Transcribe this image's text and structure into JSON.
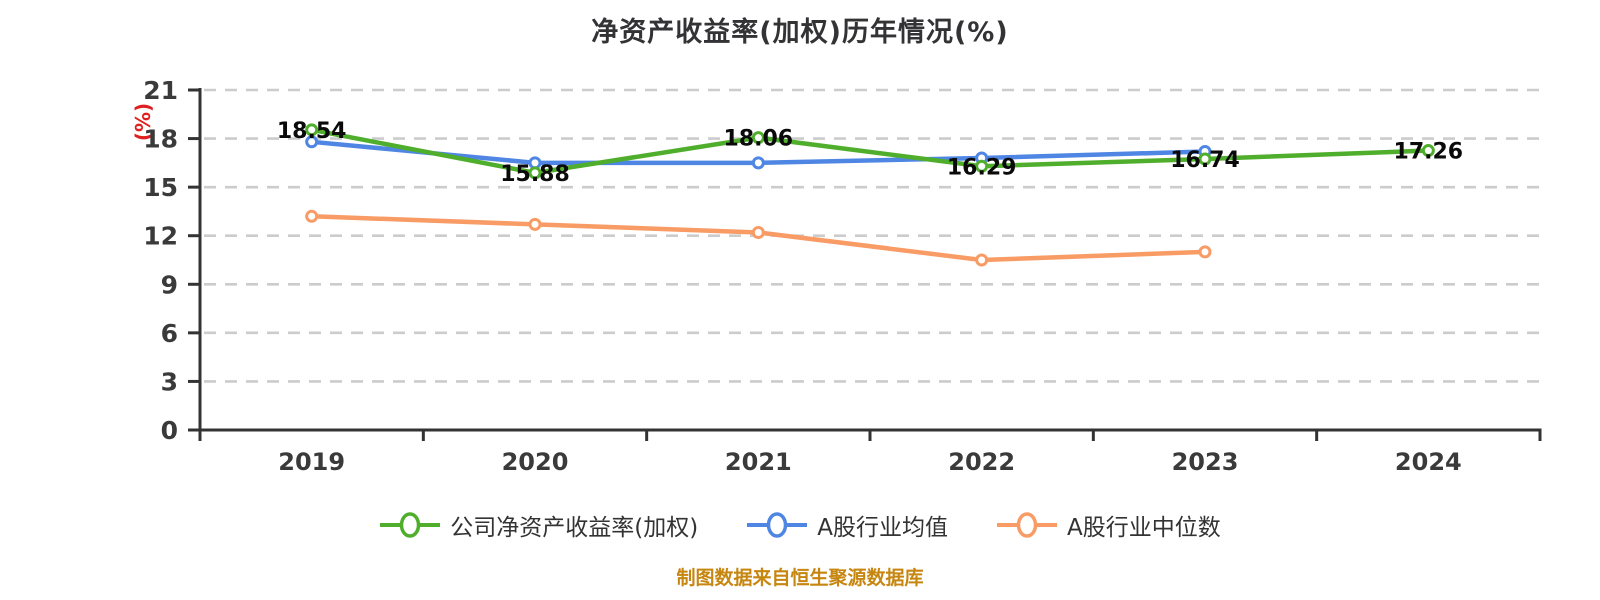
{
  "title": "净资产收益率(加权)历年情况(%)",
  "y_axis_name": "(%)",
  "footer": "制图数据来自恒生聚源数据库",
  "colors": {
    "company_series": "#4fae2c",
    "industry_mean_series": "#4f86e3",
    "industry_median_series": "#f89b64",
    "grid": "#cccccc",
    "axis": "#333333",
    "tick_label": "#3a3a3a",
    "data_label": "#0a0a0a",
    "y_axis_name": "#e02020",
    "footer_text": "#c6860f",
    "marker_fill": "#ffffff"
  },
  "chart_data": {
    "type": "line",
    "title": "净资产收益率(加权)历年情况(%)",
    "xlabel": "",
    "ylabel": "(%)",
    "categories": [
      "2019",
      "2020",
      "2021",
      "2022",
      "2023",
      "2024"
    ],
    "series": [
      {
        "key": "company-roe",
        "name": "公司净资产收益率(加权)",
        "color": "#4fae2c",
        "values": [
          18.54,
          15.88,
          18.06,
          16.29,
          16.74,
          17.26
        ],
        "labels": [
          "18.54",
          "15.88",
          "18.06",
          "16.29",
          "16.74",
          "17.26"
        ],
        "show_labels": true
      },
      {
        "key": "industry-mean",
        "name": "A股行业均值",
        "color": "#4f86e3",
        "values": [
          17.8,
          16.5,
          16.5,
          16.8,
          17.2,
          null
        ],
        "show_labels": false
      },
      {
        "key": "industry-median",
        "name": "A股行业中位数",
        "color": "#f89b64",
        "values": [
          13.2,
          12.7,
          12.2,
          10.5,
          11.0,
          null
        ],
        "show_labels": false
      }
    ],
    "ylim": [
      0,
      21
    ],
    "yticks": [
      0,
      3,
      6,
      9,
      12,
      15,
      18,
      21
    ],
    "grid": "horizontal-dashed",
    "legend_position": "bottom",
    "marker": "circle-white-fill"
  }
}
